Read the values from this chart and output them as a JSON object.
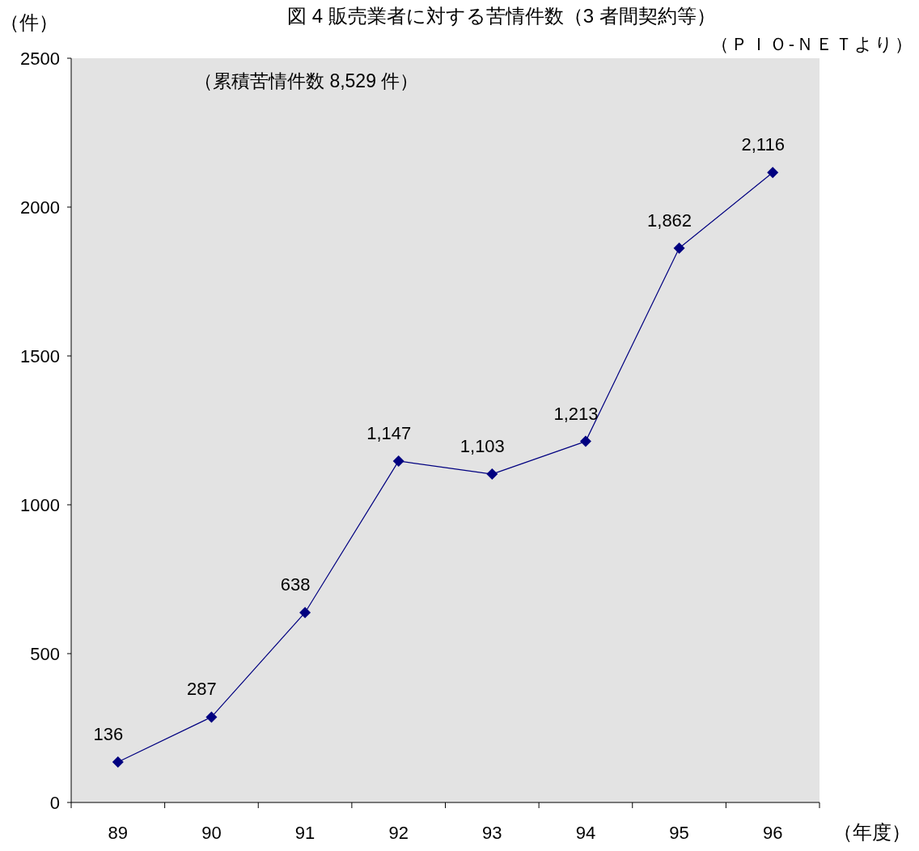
{
  "chart_data": {
    "type": "line",
    "title": "図 4 販売業者に対する苦情件数（3 者間契約等）",
    "categories": [
      "89",
      "90",
      "91",
      "92",
      "93",
      "94",
      "95",
      "96"
    ],
    "series": [
      {
        "color": "#000080",
        "values": [
          136,
          287,
          638,
          1147,
          1103,
          1213,
          1862,
          2116
        ],
        "value_labels": [
          "136",
          "287",
          "638",
          "1,147",
          "1,103",
          "1,213",
          "1,862",
          "2,116"
        ]
      }
    ],
    "ylim": [
      0,
      2500
    ],
    "yticks": [
      0,
      500,
      1000,
      1500,
      2000,
      2500
    ],
    "xlabel": "（年度）",
    "ylabel": "（件）",
    "annotations": [
      "（ＰＩＯ-ＮＥＴより）",
      "（累積苦情件数 8,529 件）"
    ],
    "marker": "diamond",
    "line_style": "solid",
    "grid": false
  }
}
